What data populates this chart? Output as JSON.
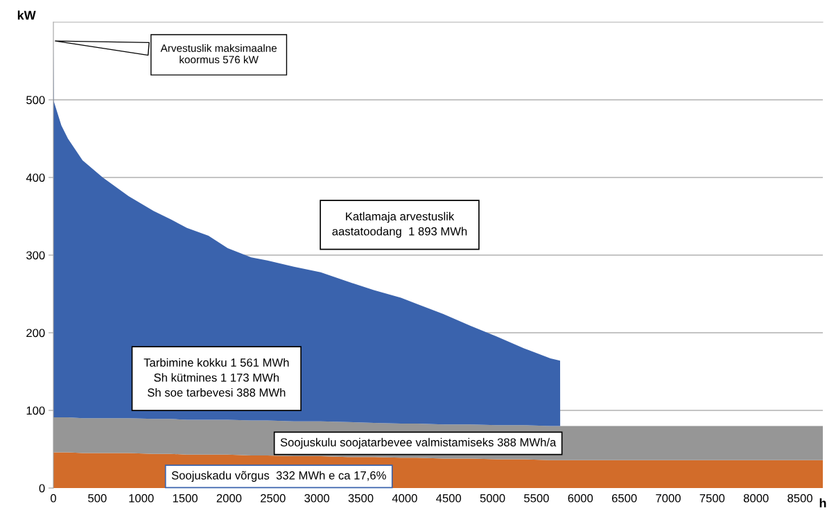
{
  "chart_data": {
    "type": "area",
    "stacked": true,
    "xlabel": "h",
    "ylabel": "kW",
    "x": [
      0,
      5,
      91,
      166,
      332,
      562,
      857,
      1140,
      1338,
      1520,
      1765,
      1985,
      2252,
      2437,
      2738,
      3043,
      3348,
      3649,
      3957,
      4140,
      4440,
      4749,
      5049,
      5358,
      5659,
      5769,
      5770,
      8760
    ],
    "series": [
      {
        "color": "#d26c2a",
        "values": [
          46,
          46,
          46,
          46,
          45,
          45,
          45,
          44,
          44,
          43,
          43,
          43,
          42,
          42,
          41,
          41,
          40,
          40,
          39,
          39,
          38,
          38,
          37,
          37,
          36,
          36,
          36,
          36
        ]
      },
      {
        "color": "#969696",
        "values": [
          45,
          45,
          45,
          45,
          45,
          45,
          45,
          45,
          45,
          45,
          45,
          45,
          45,
          45,
          45,
          45,
          45,
          44,
          44,
          44,
          44,
          44,
          44,
          44,
          44,
          44,
          44,
          44
        ]
      },
      {
        "color": "#3a63ad",
        "values": [
          485,
          407,
          376,
          359,
          332,
          310,
          286,
          268,
          257,
          247,
          237,
          221,
          210,
          206,
          199,
          192,
          181,
          171,
          162,
          154,
          142,
          127,
          114,
          99,
          87,
          84,
          0,
          0
        ]
      }
    ],
    "xlim": [
      0,
      8760
    ],
    "ylim": [
      0,
      600
    ],
    "xticks": [
      0,
      500,
      1000,
      1500,
      2000,
      2500,
      3000,
      3500,
      4000,
      4500,
      5000,
      5500,
      6000,
      6500,
      7000,
      7500,
      8000,
      8500
    ],
    "yticks": [
      0,
      100,
      200,
      300,
      400,
      500
    ],
    "grid": "y",
    "legend": false,
    "annotations": [
      {
        "text": "Arvestuslik maksimaalne\nkoormus 576 kW",
        "x": 0,
        "y": 576
      },
      "Katlamaja arvestuslik\naastatoodang  1 893 MWh",
      "Tarbimine kokku 1 561 MWh\nSh kütmines 1 173 MWh\nSh soe tarbevesi 388 MWh",
      "Soojuskulu soojatarbevee valmistamiseks 388 MWh/a",
      "Soojuskadu võrgus  332 MWh e ca 17,6%"
    ]
  }
}
